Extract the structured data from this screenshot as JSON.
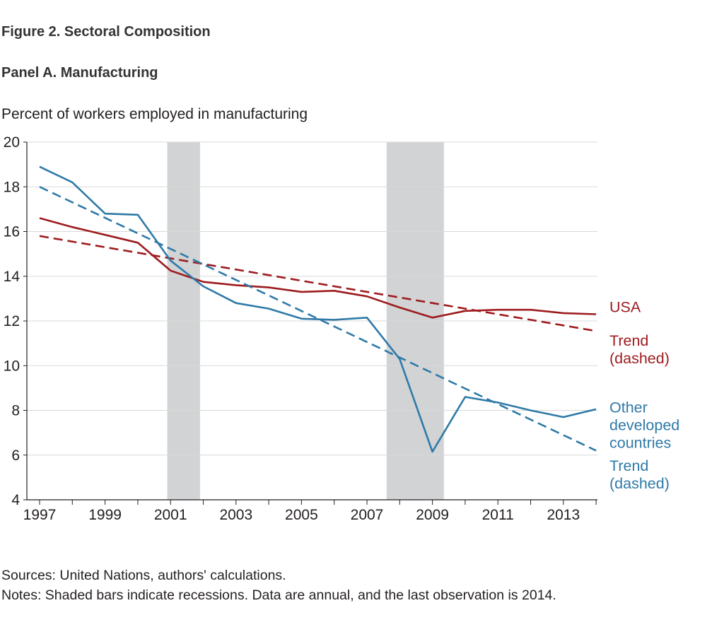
{
  "figure_title": "Figure 2. Sectoral Composition",
  "panel_title": "Panel A. Manufacturing",
  "y_unit_label": "Percent of workers employed in manufacturing",
  "sources": "Sources: United Nations, authors' calculations.",
  "notes": "Notes: Shaded bars indicate recessions. Data are annual, and the last observation is 2014.",
  "colors": {
    "usa": "#9e1b1f",
    "other": "#2f7aa8",
    "recession": "#d1d3d4",
    "grid": "#d9d9d9",
    "axis": "#231f20"
  },
  "chart_data": {
    "type": "line",
    "title": "Panel A. Manufacturing",
    "xlabel": "",
    "ylabel": "Percent of workers employed in manufacturing",
    "xlim": [
      1997,
      2014
    ],
    "ylim": [
      4,
      20
    ],
    "x_ticks": [
      "1997",
      "1999",
      "2001",
      "2003",
      "2005",
      "2007",
      "2009",
      "2011",
      "2013"
    ],
    "y_ticks": [
      "4",
      "6",
      "8",
      "10",
      "12",
      "14",
      "16",
      "18",
      "20"
    ],
    "grid": true,
    "recessions": [
      [
        2000.9,
        2001.9
      ],
      [
        2007.6,
        2009.35
      ]
    ],
    "x": [
      1997,
      1998,
      1999,
      2000,
      2001,
      2002,
      2003,
      2004,
      2005,
      2006,
      2007,
      2008,
      2009,
      2010,
      2011,
      2012,
      2013,
      2014
    ],
    "series": [
      {
        "key": "usa",
        "values": [
          16.6,
          16.2,
          15.85,
          15.5,
          14.25,
          13.75,
          13.6,
          13.5,
          13.3,
          13.35,
          13.1,
          12.6,
          12.15,
          12.45,
          12.5,
          12.5,
          12.35,
          12.3
        ],
        "style": "solid"
      },
      {
        "key": "usa_trend",
        "values_from_to": [
          15.8,
          11.55
        ],
        "style": "dashed"
      },
      {
        "key": "other",
        "values": [
          18.9,
          18.2,
          16.8,
          16.75,
          14.7,
          13.55,
          12.8,
          12.55,
          12.1,
          12.05,
          12.15,
          10.3,
          6.15,
          8.6,
          8.35,
          8.0,
          7.7,
          8.05
        ],
        "style": "solid"
      },
      {
        "key": "other_trend",
        "values_from_to": [
          18.0,
          6.2
        ],
        "style": "dashed"
      }
    ],
    "legend_labels": [
      {
        "key": "usa",
        "lines": [
          "USA"
        ],
        "color_key": "usa",
        "y": 12.4
      },
      {
        "key": "usa_trend",
        "lines": [
          "Trend",
          "(dashed)"
        ],
        "color_key": "usa",
        "y": 10.9
      },
      {
        "key": "other",
        "lines": [
          "Other",
          "developed",
          "countries"
        ],
        "color_key": "other",
        "y": 7.9
      },
      {
        "key": "other_trend",
        "lines": [
          "Trend",
          "(dashed)"
        ],
        "color_key": "other",
        "y": 5.3
      }
    ]
  }
}
